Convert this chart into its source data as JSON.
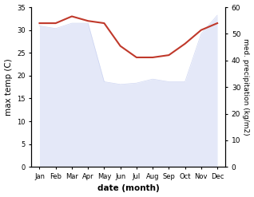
{
  "months": [
    "Jan",
    "Feb",
    "Mar",
    "Apr",
    "May",
    "Jun",
    "Jul",
    "Aug",
    "Sep",
    "Oct",
    "Nov",
    "Dec"
  ],
  "temp_max": [
    31.5,
    31.5,
    33.0,
    32.0,
    31.5,
    26.5,
    24.0,
    24.0,
    24.5,
    27.0,
    30.0,
    31.5
  ],
  "precipitation_kg": [
    53.0,
    52.0,
    54.0,
    54.0,
    32.0,
    31.0,
    31.5,
    33.0,
    32.0,
    32.0,
    50.0,
    57.0
  ],
  "temp_color": "#c0392b",
  "precip_fill_color": "#c5cef0",
  "temp_ylim": [
    0,
    35
  ],
  "precip_ylim": [
    0,
    60
  ],
  "temp_yticks": [
    0,
    5,
    10,
    15,
    20,
    25,
    30,
    35
  ],
  "precip_yticks": [
    0,
    10,
    20,
    30,
    40,
    50,
    60
  ],
  "xlabel": "date (month)",
  "ylabel_left": "max temp (C)",
  "ylabel_right": "med. precipitation (kg/m2)",
  "bg_color": "#ffffff"
}
